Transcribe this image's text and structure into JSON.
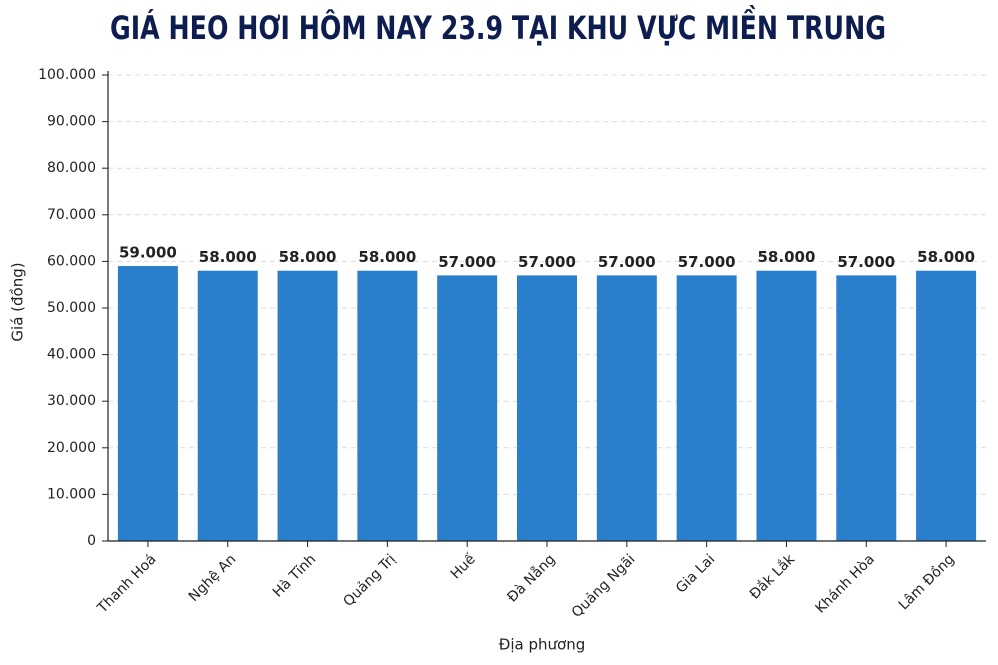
{
  "chart_data": {
    "type": "bar",
    "title": "GIÁ HEO HƠI HÔM NAY 23.9 TẠI KHU VỰC MIỀN TRUNG",
    "x_label": "Địa phương",
    "y_label": "Giá (đồng)",
    "categories": [
      "Thanh Hoá",
      "Nghệ An",
      "Hà Tĩnh",
      "Quảng Trị",
      "Huế",
      "Đà Nẵng",
      "Quảng Ngãi",
      "Gia Lai",
      "Đắk Lắk",
      "Khánh Hòa",
      "Lâm Đồng"
    ],
    "values": [
      59000,
      58000,
      58000,
      58000,
      57000,
      57000,
      57000,
      57000,
      58000,
      57000,
      58000
    ],
    "value_labels": [
      "59.000",
      "58.000",
      "58.000",
      "58.000",
      "57.000",
      "57.000",
      "57.000",
      "57.000",
      "58.000",
      "57.000",
      "58.000"
    ],
    "color": "#2a7fcc",
    "ylim": [
      0,
      100000
    ],
    "yticks": [
      0,
      {
        "value": 10000,
        "label": "10.000"
      },
      {
        "value": 20000,
        "label": "20.000"
      },
      {
        "value": 30000,
        "label": "30.000"
      },
      {
        "value": 40000,
        "label": "40.000"
      },
      {
        "value": 50000,
        "label": "50.000"
      },
      {
        "value": 60000,
        "label": "60.000"
      },
      {
        "value": 70000,
        "label": "70.000"
      },
      {
        "value": 80000,
        "label": "80.000"
      },
      {
        "value": 90000,
        "label": "90.000"
      },
      {
        "value": 100000,
        "label": "100.000"
      }
    ],
    "grid": true
  }
}
